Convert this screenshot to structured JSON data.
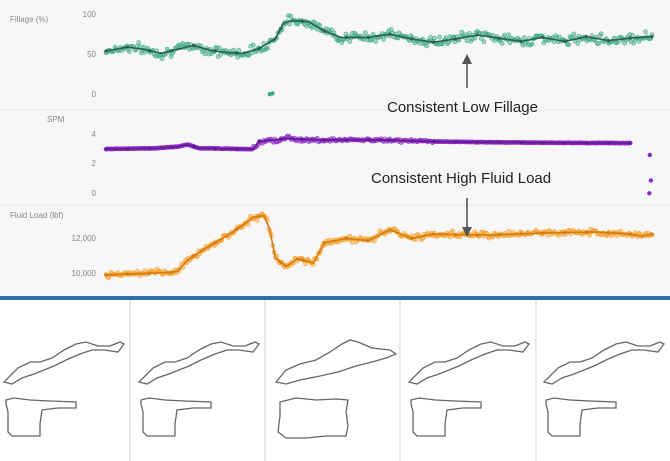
{
  "chart_data": [
    {
      "type": "scatter",
      "name": "fillage",
      "ylabel": "Fillage (%)",
      "ylim": [
        0,
        100
      ],
      "yticks": [
        "0",
        "50",
        "100"
      ],
      "color": "#3dab83",
      "trend_color": "#2d5e4c",
      "trend_points": [
        [
          0,
          55
        ],
        [
          4,
          60
        ],
        [
          7,
          57
        ],
        [
          10,
          52
        ],
        [
          13,
          57
        ],
        [
          16,
          62
        ],
        [
          19,
          56
        ],
        [
          22,
          53
        ],
        [
          25,
          52
        ],
        [
          28,
          58
        ],
        [
          31,
          70
        ],
        [
          32.5,
          90
        ],
        [
          34,
          93
        ],
        [
          37,
          92
        ],
        [
          40,
          80
        ],
        [
          43,
          72
        ],
        [
          48,
          72
        ],
        [
          52,
          76
        ],
        [
          56,
          70
        ],
        [
          60,
          66
        ],
        [
          64,
          70
        ],
        [
          68,
          75
        ],
        [
          72,
          71
        ],
        [
          76,
          67
        ],
        [
          80,
          72
        ],
        [
          84,
          67
        ],
        [
          88,
          73
        ],
        [
          92,
          68
        ],
        [
          96,
          71
        ],
        [
          100,
          73
        ]
      ],
      "annotation": "Consistent Low Fillage"
    },
    {
      "type": "scatter",
      "name": "spm",
      "ylabel": "SPM",
      "ylim": [
        0,
        4
      ],
      "yticks": [
        "0",
        "2",
        "4"
      ],
      "color": "#8e25c9",
      "trend_color": "#5d1c8a",
      "trend_points": [
        [
          0,
          3.0
        ],
        [
          9,
          3.05
        ],
        [
          13,
          3.15
        ],
        [
          15,
          3.3
        ],
        [
          17,
          3.05
        ],
        [
          25,
          3.0
        ],
        [
          27,
          2.98
        ],
        [
          28,
          3.5
        ],
        [
          33,
          3.7
        ],
        [
          40,
          3.6
        ],
        [
          50,
          3.6
        ],
        [
          60,
          3.5
        ],
        [
          70,
          3.45
        ],
        [
          80,
          3.42
        ],
        [
          90,
          3.4
        ],
        [
          96,
          3.4
        ]
      ],
      "annotation": "Consistent High Fluid Load"
    },
    {
      "type": "scatter",
      "name": "fluid_load",
      "ylabel": "Fluid Load (lbf)",
      "ylim": [
        9000,
        13000
      ],
      "yticks": [
        "10,000",
        "12,000"
      ],
      "color": "#f5a02a",
      "trend_color": "#d47a10",
      "trend_points": [
        [
          0,
          9700
        ],
        [
          5,
          9750
        ],
        [
          10,
          9800
        ],
        [
          13,
          9850
        ],
        [
          15,
          10400
        ],
        [
          18,
          10900
        ],
        [
          22,
          11500
        ],
        [
          25,
          12000
        ],
        [
          27,
          12400
        ],
        [
          29,
          12450
        ],
        [
          30,
          11800
        ],
        [
          31,
          10500
        ],
        [
          33,
          10100
        ],
        [
          35,
          10450
        ],
        [
          38,
          10250
        ],
        [
          40,
          11200
        ],
        [
          44,
          11400
        ],
        [
          48,
          11300
        ],
        [
          52,
          11800
        ],
        [
          56,
          11400
        ],
        [
          60,
          11600
        ],
        [
          70,
          11550
        ],
        [
          80,
          11650
        ],
        [
          90,
          11700
        ],
        [
          96,
          11600
        ],
        [
          98,
          11500
        ],
        [
          100,
          11600
        ]
      ]
    }
  ],
  "cards": [
    {
      "surface": "dynagraph-surface-icon",
      "downhole": "dynagraph-downhole-icon"
    },
    {
      "surface": "dynagraph-surface-icon",
      "downhole": "dynagraph-downhole-icon"
    },
    {
      "surface": "dynagraph-surface-icon",
      "downhole": "dynagraph-downhole-icon"
    },
    {
      "surface": "dynagraph-surface-icon",
      "downhole": "dynagraph-downhole-icon"
    },
    {
      "surface": "dynagraph-surface-icon",
      "downhole": "dynagraph-downhole-icon"
    }
  ]
}
